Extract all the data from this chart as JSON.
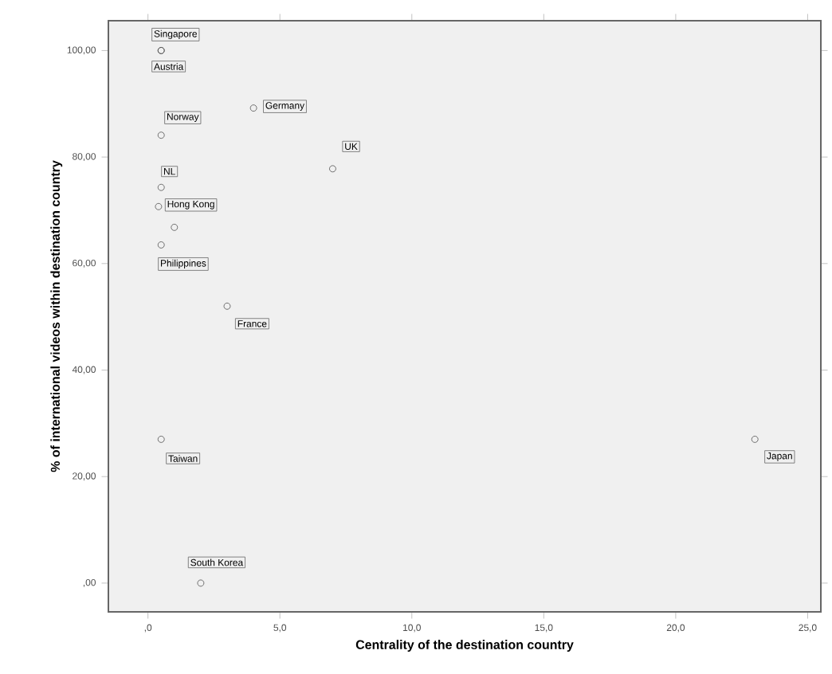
{
  "chart_data": {
    "type": "scatter",
    "xlabel": "Centrality of the destination country",
    "ylabel": "% of international videos within destination country",
    "x": [
      0.5,
      0.5,
      0.5,
      4.0,
      7.0,
      0.5,
      0.4,
      1.0,
      0.5,
      3.0,
      0.5,
      2.0,
      23.0
    ],
    "series": [
      {
        "color": "#505050",
        "values": [
          100,
          100,
          84.1,
          89.2,
          77.8,
          74.3,
          70.7,
          66.8,
          63.5,
          52,
          27,
          0,
          27
        ]
      }
    ],
    "marker": "circle",
    "grid": false,
    "xlim": [
      -1.5,
      25.5
    ],
    "ylim": [
      -5.4,
      105.6
    ],
    "xticks": [
      {
        "value": 0,
        "label": ",0"
      },
      {
        "value": 5,
        "label": "5,0"
      },
      {
        "value": 10,
        "label": "10,0"
      },
      {
        "value": 15,
        "label": "15,0"
      },
      {
        "value": 20,
        "label": "20,0"
      },
      {
        "value": 25,
        "label": "25,0"
      }
    ],
    "yticks": [
      {
        "value": 0,
        "label": ",00"
      },
      {
        "value": 20,
        "label": "20,00"
      },
      {
        "value": 40,
        "label": "40,00"
      },
      {
        "value": 60,
        "label": "60,00"
      },
      {
        "value": 80,
        "label": "80,00"
      },
      {
        "value": 100,
        "label": "100,00"
      }
    ],
    "annotations": [
      {
        "text": "Singapore",
        "x": 0.5,
        "y": 100
      },
      {
        "text": "Austria",
        "x": 0.5,
        "y": 100
      },
      {
        "text": "Norway",
        "x": 0.5,
        "y": 84.1
      },
      {
        "text": "Germany",
        "x": 4.0,
        "y": 89.2
      },
      {
        "text": "UK",
        "x": 7.0,
        "y": 77.8
      },
      {
        "text": "NL",
        "x": 0.5,
        "y": 74.3
      },
      {
        "text": "Hong Kong",
        "x": 0.4,
        "y": 70.7
      },
      {
        "text": "Philippines",
        "x": 0.5,
        "y": 63.5
      },
      {
        "text": "France",
        "x": 3.0,
        "y": 52
      },
      {
        "text": "Taiwan",
        "x": 0.5,
        "y": 27
      },
      {
        "text": "South Korea",
        "x": 2.0,
        "y": 0
      },
      {
        "text": "Japan",
        "x": 23.0,
        "y": 27
      }
    ]
  }
}
